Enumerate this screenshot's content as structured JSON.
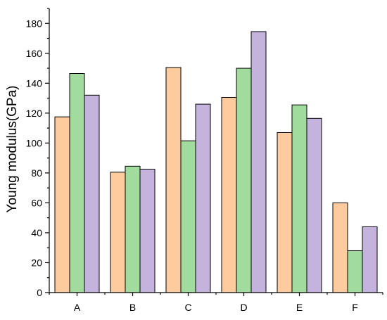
{
  "chart_data": {
    "type": "bar",
    "title": "",
    "xlabel": "",
    "ylabel": "Young modulus(GPa)",
    "ylim": [
      0,
      190
    ],
    "yticks": [
      0,
      20,
      40,
      60,
      80,
      100,
      120,
      140,
      160,
      180
    ],
    "categories": [
      "A",
      "B",
      "C",
      "D",
      "E",
      "F"
    ],
    "grid": false,
    "legend": "none",
    "series": [
      {
        "color": "#FDCB9E",
        "values": [
          117.5,
          80.5,
          150.5,
          130.5,
          107,
          60
        ]
      },
      {
        "color": "#A2DB9E",
        "values": [
          146.5,
          84.5,
          101.5,
          150,
          125.5,
          28
        ]
      },
      {
        "color": "#C3B3DD",
        "values": [
          132,
          82.5,
          126,
          174.5,
          116.5,
          44
        ]
      }
    ]
  }
}
